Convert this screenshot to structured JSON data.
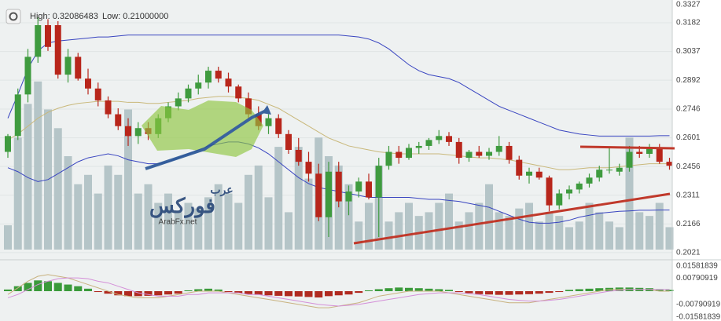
{
  "header": {
    "high": "High: 0.32086483",
    "low": "Low: 0.21000000"
  },
  "logo": {
    "small": "عرب",
    "big": "فوركس",
    "url": "ArabFx.net"
  },
  "chart_data": [
    {
      "type": "candlestick",
      "up_color": "#3f9b3f",
      "down_color": "#b8261b",
      "grid": true,
      "ylim": [
        0.1989,
        0.3297
      ],
      "yticks": [
        0.3327,
        0.3182,
        0.3037,
        0.2892,
        0.2746,
        0.2601,
        0.2456,
        0.2311,
        0.2166,
        0.2021
      ],
      "ohlc": [
        [
          0.253,
          0.262,
          0.25,
          0.261
        ],
        [
          0.261,
          0.285,
          0.259,
          0.282
        ],
        [
          0.282,
          0.305,
          0.278,
          0.301
        ],
        [
          0.301,
          0.3209,
          0.298,
          0.317
        ],
        [
          0.317,
          0.32,
          0.304,
          0.306
        ],
        [
          0.317,
          0.319,
          0.29,
          0.292
        ],
        [
          0.292,
          0.305,
          0.288,
          0.301
        ],
        [
          0.301,
          0.303,
          0.289,
          0.29
        ],
        [
          0.29,
          0.295,
          0.282,
          0.285
        ],
        [
          0.285,
          0.288,
          0.276,
          0.279
        ],
        [
          0.279,
          0.281,
          0.27,
          0.272
        ],
        [
          0.272,
          0.275,
          0.264,
          0.266
        ],
        [
          0.266,
          0.27,
          0.256,
          0.261
        ],
        [
          0.261,
          0.268,
          0.257,
          0.265
        ],
        [
          0.265,
          0.268,
          0.259,
          0.262
        ],
        [
          0.262,
          0.272,
          0.26,
          0.27
        ],
        [
          0.27,
          0.278,
          0.268,
          0.276
        ],
        [
          0.276,
          0.283,
          0.274,
          0.28
        ],
        [
          0.28,
          0.287,
          0.278,
          0.285
        ],
        [
          0.285,
          0.292,
          0.282,
          0.288
        ],
        [
          0.288,
          0.296,
          0.285,
          0.294
        ],
        [
          0.294,
          0.296,
          0.288,
          0.29
        ],
        [
          0.29,
          0.293,
          0.283,
          0.286
        ],
        [
          0.286,
          0.287,
          0.278,
          0.28
        ],
        [
          0.28,
          0.283,
          0.27,
          0.272
        ],
        [
          0.272,
          0.276,
          0.264,
          0.266
        ],
        [
          0.266,
          0.272,
          0.262,
          0.27
        ],
        [
          0.27,
          0.272,
          0.26,
          0.262
        ],
        [
          0.262,
          0.264,
          0.252,
          0.254
        ],
        [
          0.254,
          0.26,
          0.246,
          0.248
        ],
        [
          0.248,
          0.253,
          0.238,
          0.242
        ],
        [
          0.242,
          0.247,
          0.218,
          0.22
        ],
        [
          0.22,
          0.248,
          0.21,
          0.243
        ],
        [
          0.243,
          0.248,
          0.225,
          0.228
        ],
        [
          0.228,
          0.236,
          0.221,
          0.233
        ],
        [
          0.233,
          0.24,
          0.23,
          0.238
        ],
        [
          0.238,
          0.242,
          0.229,
          0.23
        ],
        [
          0.23,
          0.25,
          0.21,
          0.246
        ],
        [
          0.246,
          0.256,
          0.244,
          0.253
        ],
        [
          0.253,
          0.256,
          0.247,
          0.25
        ],
        [
          0.25,
          0.257,
          0.249,
          0.255
        ],
        [
          0.255,
          0.258,
          0.252,
          0.256
        ],
        [
          0.256,
          0.26,
          0.254,
          0.259
        ],
        [
          0.259,
          0.264,
          0.257,
          0.261
        ],
        [
          0.261,
          0.263,
          0.256,
          0.258
        ],
        [
          0.258,
          0.26,
          0.247,
          0.25
        ],
        [
          0.25,
          0.254,
          0.248,
          0.253
        ],
        [
          0.253,
          0.256,
          0.25,
          0.251
        ],
        [
          0.251,
          0.255,
          0.249,
          0.253
        ],
        [
          0.253,
          0.261,
          0.251,
          0.256
        ],
        [
          0.256,
          0.258,
          0.247,
          0.249
        ],
        [
          0.249,
          0.251,
          0.239,
          0.241
        ],
        [
          0.241,
          0.245,
          0.237,
          0.243
        ],
        [
          0.243,
          0.245,
          0.239,
          0.24
        ],
        [
          0.24,
          0.241,
          0.223,
          0.226
        ],
        [
          0.226,
          0.234,
          0.224,
          0.232
        ],
        [
          0.232,
          0.236,
          0.229,
          0.234
        ],
        [
          0.234,
          0.238,
          0.232,
          0.237
        ],
        [
          0.237,
          0.242,
          0.235,
          0.24
        ],
        [
          0.24,
          0.246,
          0.238,
          0.244
        ],
        [
          0.244,
          0.255,
          0.242,
          0.244
        ],
        [
          0.243,
          0.247,
          0.241,
          0.245
        ],
        [
          0.245,
          0.256,
          0.243,
          0.253
        ],
        [
          0.253,
          0.256,
          0.25,
          0.252
        ],
        [
          0.252,
          0.257,
          0.25,
          0.255
        ],
        [
          0.255,
          0.257,
          0.247,
          0.248
        ],
        [
          0.248,
          0.25,
          0.244,
          0.246
        ]
      ],
      "volume": {
        "color": "#b5c5c8",
        "vlim": [
          0,
          100
        ],
        "values": [
          13,
          60,
          78,
          90,
          75,
          65,
          50,
          35,
          40,
          30,
          45,
          40,
          75,
          30,
          35,
          25,
          30,
          20,
          25,
          22,
          28,
          35,
          30,
          25,
          40,
          45,
          28,
          55,
          20,
          55,
          38,
          60,
          50,
          45,
          35,
          15,
          25,
          45,
          15,
          20,
          25,
          18,
          20,
          25,
          30,
          15,
          20,
          25,
          35,
          20,
          18,
          22,
          25,
          15,
          20,
          18,
          12,
          15,
          25,
          20,
          15,
          12,
          60,
          20,
          18,
          25,
          12
        ]
      },
      "bands": [
        {
          "color": "#3844c0",
          "values": [
            0.27,
            0.282,
            0.295,
            0.304,
            0.308,
            0.309,
            0.3095,
            0.31,
            0.3105,
            0.311,
            0.311,
            0.3115,
            0.312,
            0.312,
            0.312,
            0.312,
            0.312,
            0.312,
            0.312,
            0.312,
            0.312,
            0.312,
            0.312,
            0.312,
            0.312,
            0.312,
            0.312,
            0.312,
            0.312,
            0.312,
            0.312,
            0.312,
            0.312,
            0.312,
            0.3115,
            0.311,
            0.31,
            0.308,
            0.305,
            0.301,
            0.297,
            0.294,
            0.292,
            0.291,
            0.29,
            0.288,
            0.285,
            0.282,
            0.279,
            0.276,
            0.274,
            0.272,
            0.27,
            0.268,
            0.266,
            0.264,
            0.263,
            0.262,
            0.2615,
            0.261,
            0.261,
            0.261,
            0.261,
            0.261,
            0.261,
            0.2612,
            0.2612
          ]
        },
        {
          "color": "#c9b87a",
          "values": [
            0.259,
            0.262,
            0.266,
            0.27,
            0.273,
            0.275,
            0.2765,
            0.2775,
            0.278,
            0.2785,
            0.2785,
            0.2785,
            0.278,
            0.278,
            0.2775,
            0.2775,
            0.278,
            0.2785,
            0.279,
            0.28,
            0.2805,
            0.281,
            0.281,
            0.2805,
            0.28,
            0.279,
            0.277,
            0.275,
            0.272,
            0.269,
            0.266,
            0.263,
            0.26,
            0.258,
            0.256,
            0.255,
            0.254,
            0.253,
            0.2525,
            0.252,
            0.252,
            0.252,
            0.252,
            0.252,
            0.2515,
            0.251,
            0.2505,
            0.25,
            0.25,
            0.2495,
            0.249,
            0.248,
            0.247,
            0.246,
            0.245,
            0.244,
            0.244,
            0.2445,
            0.245,
            0.245,
            0.245,
            0.2455,
            0.246,
            0.2465,
            0.247,
            0.247,
            0.247
          ]
        },
        {
          "color": "#3844c0",
          "values": [
            0.245,
            0.243,
            0.24,
            0.238,
            0.239,
            0.242,
            0.245,
            0.248,
            0.25,
            0.251,
            0.252,
            0.251,
            0.249,
            0.248,
            0.247,
            0.247,
            0.248,
            0.25,
            0.252,
            0.254,
            0.256,
            0.257,
            0.258,
            0.258,
            0.257,
            0.255,
            0.252,
            0.248,
            0.244,
            0.24,
            0.237,
            0.235,
            0.234,
            0.233,
            0.232,
            0.231,
            0.23,
            0.23,
            0.23,
            0.23,
            0.23,
            0.2295,
            0.229,
            0.229,
            0.2285,
            0.228,
            0.227,
            0.226,
            0.225,
            0.223,
            0.221,
            0.219,
            0.2175,
            0.217,
            0.217,
            0.2175,
            0.2185,
            0.22,
            0.221,
            0.222,
            0.2225,
            0.223,
            0.2232,
            0.2235,
            0.2235,
            0.2236,
            0.2236
          ]
        }
      ]
    },
    {
      "type": "macd",
      "ylim": [
        -0.018,
        0.018
      ],
      "yticks": [
        0.01581839,
        0.00790919,
        -0.00790919,
        -0.01581839
      ],
      "histogram": {
        "up_color": "#3a9a3a",
        "down_color": "#b02a20",
        "values": [
          0.001,
          0.003,
          0.005,
          0.0065,
          0.006,
          0.005,
          0.004,
          0.003,
          0.0015,
          -0.0005,
          -0.0015,
          -0.0025,
          -0.003,
          -0.003,
          -0.0028,
          -0.0025,
          -0.002,
          -0.0015,
          0.0005,
          0.0012,
          0.0015,
          0.001,
          -0.0005,
          -0.0012,
          -0.0018,
          -0.0022,
          -0.0025,
          -0.0028,
          -0.003,
          -0.0032,
          -0.0035,
          -0.0038,
          -0.003,
          -0.0025,
          -0.002,
          -0.001,
          0.0005,
          0.0012,
          0.0018,
          0.0022,
          0.002,
          0.0018,
          0.0015,
          0.0012,
          0.0008,
          -0.0005,
          -0.0012,
          -0.0018,
          -0.002,
          -0.0022,
          -0.0022,
          -0.002,
          -0.0018,
          -0.0015,
          -0.001,
          -0.0005,
          0.0008,
          0.0012,
          0.0015,
          0.0018,
          0.002,
          0.0022,
          0.0022,
          0.002,
          0.0018,
          0.0012,
          0.0008
        ]
      },
      "lines": [
        {
          "color": "#c8b27f",
          "values": [
            -0.002,
            0.002,
            0.006,
            0.009,
            0.01,
            0.009,
            0.008,
            0.006,
            0.004,
            0.002,
            0.0,
            -0.002,
            -0.003,
            -0.004,
            -0.004,
            -0.004,
            -0.003,
            -0.002,
            -0.001,
            0.0,
            0.0,
            0.0,
            -0.001,
            -0.002,
            -0.003,
            -0.004,
            -0.005,
            -0.006,
            -0.007,
            -0.008,
            -0.009,
            -0.01,
            -0.01,
            -0.009,
            -0.008,
            -0.007,
            -0.005,
            -0.003,
            -0.002,
            -0.001,
            0.0,
            0.0,
            0.0,
            0.0,
            -0.001,
            -0.002,
            -0.003,
            -0.004,
            -0.005,
            -0.006,
            -0.007,
            -0.007,
            -0.007,
            -0.006,
            -0.005,
            -0.004,
            -0.003,
            -0.002,
            -0.001,
            0.0,
            0.001,
            0.001,
            0.001,
            0.001,
            0.001,
            0.0,
            0.0
          ]
        },
        {
          "color": "#d48fd8",
          "values": [
            -0.004,
            -0.002,
            0.001,
            0.004,
            0.006,
            0.0075,
            0.008,
            0.008,
            0.0075,
            0.006,
            0.005,
            0.003,
            0.001,
            -0.001,
            -0.002,
            -0.003,
            -0.003,
            -0.003,
            -0.002,
            -0.002,
            -0.001,
            -0.001,
            -0.001,
            -0.001,
            -0.002,
            -0.002,
            -0.003,
            -0.004,
            -0.005,
            -0.006,
            -0.007,
            -0.008,
            -0.0085,
            -0.009,
            -0.0085,
            -0.008,
            -0.007,
            -0.006,
            -0.005,
            -0.004,
            -0.003,
            -0.002,
            -0.0015,
            -0.001,
            -0.001,
            -0.001,
            -0.0015,
            -0.002,
            -0.003,
            -0.004,
            -0.005,
            -0.0055,
            -0.006,
            -0.006,
            -0.0055,
            -0.005,
            -0.004,
            -0.003,
            -0.002,
            -0.001,
            0.0,
            0.0005,
            0.001,
            0.001,
            0.001,
            0.001,
            0.001
          ]
        }
      ]
    }
  ]
}
